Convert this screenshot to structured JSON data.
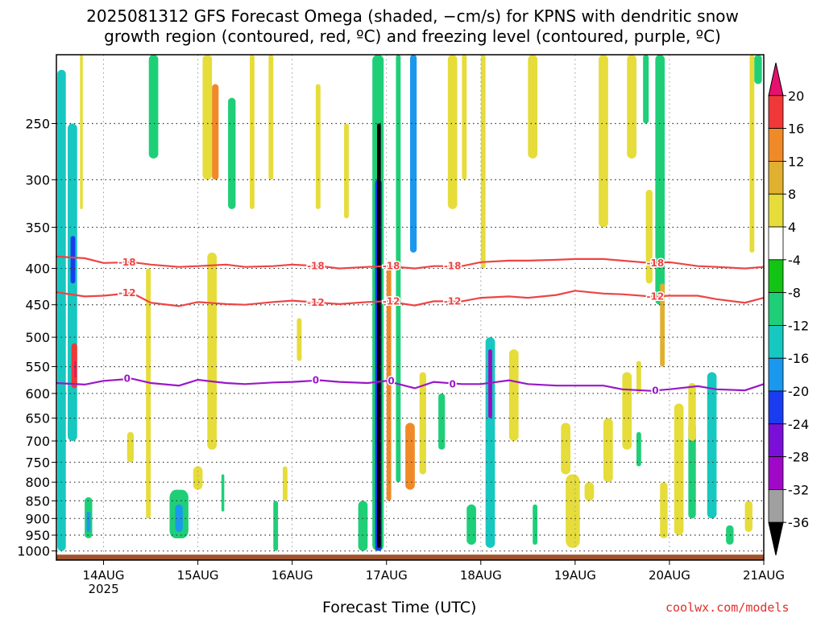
{
  "chart_data": {
    "type": "heatmap",
    "title_line1": "2025081312 GFS Forecast Omega (shaded, −cm/s) for KPNS with dendritic snow",
    "title_line2": "growth region (contoured, red, ºC) and freezing level (contoured, purple, ºC)",
    "xlabel": "Forecast Time (UTC)",
    "credit": "coolwx.com/models",
    "x_ticks": [
      "14AUG",
      "15AUG",
      "16AUG",
      "17AUG",
      "18AUG",
      "19AUG",
      "20AUG",
      "21AUG"
    ],
    "x_year": "2025",
    "x_range_days": [
      13.5,
      21.0
    ],
    "y_scale": "log-pressure",
    "y_range_hpa": [
      1030,
      200
    ],
    "y_ticks": [
      "250",
      "300",
      "350",
      "400",
      "450",
      "500",
      "550",
      "600",
      "650",
      "700",
      "750",
      "800",
      "850",
      "900",
      "950",
      "1000"
    ],
    "colorbar": {
      "labels": [
        "20",
        "16",
        "12",
        "8",
        "4",
        "-4",
        "-8",
        "-12",
        "-16",
        "-20",
        "-24",
        "-28",
        "-32",
        "-36"
      ],
      "colors_top_to_bottom": [
        "#e8106e",
        "#f03838",
        "#f08a28",
        "#e0b030",
        "#e6dc3a",
        "#ffffff",
        "#14c414",
        "#1ecf78",
        "#16c8c0",
        "#1a98ee",
        "#1a3cf0",
        "#7a10d8",
        "#a008c8",
        "#a0a0a0",
        "#000000"
      ]
    },
    "contour_labels": {
      "minus18": "-18",
      "minus12": "-12",
      "zero": "0"
    },
    "series": [
      {
        "name": "-18",
        "color": "#ee4444",
        "x": [
          13.5,
          13.8,
          14.0,
          14.3,
          14.5,
          14.8,
          15.0,
          15.3,
          15.5,
          15.8,
          16.0,
          16.3,
          16.5,
          16.8,
          17.0,
          17.3,
          17.5,
          17.8,
          18.0,
          18.3,
          18.5,
          18.8,
          19.0,
          19.3,
          19.5,
          19.8,
          20.0,
          20.3,
          20.5,
          20.8,
          21.0
        ],
        "y": [
          385,
          387,
          393,
          392,
          395,
          398,
          397,
          395,
          398,
          397,
          395,
          397,
          400,
          398,
          397,
          400,
          397,
          397,
          392,
          390,
          390,
          389,
          388,
          388,
          390,
          393,
          392,
          397,
          398,
          400,
          398
        ]
      },
      {
        "name": "-12",
        "color": "#ee4444",
        "x": [
          13.5,
          13.8,
          14.0,
          14.3,
          14.5,
          14.8,
          15.0,
          15.3,
          15.5,
          15.8,
          16.0,
          16.3,
          16.5,
          16.8,
          17.0,
          17.3,
          17.5,
          17.8,
          18.0,
          18.3,
          18.5,
          18.8,
          19.0,
          19.3,
          19.5,
          19.8,
          20.0,
          20.3,
          20.5,
          20.8,
          21.0
        ],
        "y": [
          432,
          438,
          437,
          433,
          447,
          452,
          446,
          449,
          450,
          446,
          444,
          447,
          449,
          446,
          445,
          451,
          445,
          445,
          440,
          438,
          440,
          436,
          430,
          434,
          435,
          438,
          437,
          437,
          442,
          447,
          440
        ]
      },
      {
        "name": "0",
        "color": "#9a18c8",
        "x": [
          13.5,
          13.8,
          14.0,
          14.3,
          14.5,
          14.8,
          15.0,
          15.3,
          15.5,
          15.8,
          16.0,
          16.3,
          16.5,
          16.8,
          17.0,
          17.3,
          17.5,
          17.8,
          18.0,
          18.3,
          18.5,
          18.8,
          19.0,
          19.3,
          19.5,
          19.8,
          20.0,
          20.3,
          20.5,
          20.8,
          21.0
        ],
        "y": [
          580,
          583,
          576,
          572,
          580,
          585,
          574,
          580,
          582,
          579,
          578,
          575,
          578,
          580,
          576,
          590,
          578,
          582,
          582,
          575,
          582,
          585,
          585,
          585,
          592,
          595,
          592,
          586,
          592,
          594,
          582
        ]
      }
    ],
    "shaded_cells": [
      {
        "x": [
          13.51,
          13.6
        ],
        "p": [
          1000,
          210
        ],
        "v": -12
      },
      {
        "x": [
          13.62,
          13.72
        ],
        "p": [
          700,
          250
        ],
        "v": -14
      },
      {
        "x": [
          13.65,
          13.7
        ],
        "p": [
          420,
          360
        ],
        "v": -20
      },
      {
        "x": [
          13.66,
          13.72
        ],
        "p": [
          590,
          510
        ],
        "v": 18
      },
      {
        "x": [
          13.69,
          13.71
        ],
        "p": [
          570,
          540
        ],
        "v": 21
      },
      {
        "x": [
          13.75,
          13.78
        ],
        "p": [
          330,
          200
        ],
        "v": 6
      },
      {
        "x": [
          13.8,
          13.88
        ],
        "p": [
          960,
          840
        ],
        "v": -10
      },
      {
        "x": [
          13.82,
          13.86
        ],
        "p": [
          940,
          880
        ],
        "v": -16
      },
      {
        "x": [
          14.25,
          14.32
        ],
        "p": [
          750,
          680
        ],
        "v": 5
      },
      {
        "x": [
          14.45,
          14.5
        ],
        "p": [
          900,
          400
        ],
        "v": 5
      },
      {
        "x": [
          14.48,
          14.58
        ],
        "p": [
          280,
          200
        ],
        "v": -8
      },
      {
        "x": [
          14.7,
          14.9
        ],
        "p": [
          960,
          820
        ],
        "v": -10
      },
      {
        "x": [
          14.76,
          14.84
        ],
        "p": [
          940,
          860
        ],
        "v": -18
      },
      {
        "x": [
          14.95,
          15.05
        ],
        "p": [
          820,
          760
        ],
        "v": 5
      },
      {
        "x": [
          15.05,
          15.15
        ],
        "p": [
          300,
          200
        ],
        "v": 5
      },
      {
        "x": [
          15.1,
          15.2
        ],
        "p": [
          720,
          380
        ],
        "v": 5
      },
      {
        "x": [
          15.15,
          15.22
        ],
        "p": [
          300,
          220
        ],
        "v": 12
      },
      {
        "x": [
          15.25,
          15.28
        ],
        "p": [
          880,
          780
        ],
        "v": -8
      },
      {
        "x": [
          15.32,
          15.4
        ],
        "p": [
          330,
          230
        ],
        "v": -8
      },
      {
        "x": [
          15.55,
          15.6
        ],
        "p": [
          330,
          200
        ],
        "v": 5
      },
      {
        "x": [
          15.75,
          15.8
        ],
        "p": [
          300,
          200
        ],
        "v": 5
      },
      {
        "x": [
          15.8,
          15.85
        ],
        "p": [
          1000,
          850
        ],
        "v": -8
      },
      {
        "x": [
          15.9,
          15.95
        ],
        "p": [
          850,
          760
        ],
        "v": 5
      },
      {
        "x": [
          16.05,
          16.1
        ],
        "p": [
          540,
          470
        ],
        "v": 5
      },
      {
        "x": [
          16.25,
          16.3
        ],
        "p": [
          330,
          220
        ],
        "v": 5
      },
      {
        "x": [
          16.55,
          16.6
        ],
        "p": [
          340,
          250
        ],
        "v": 5
      },
      {
        "x": [
          16.7,
          16.8
        ],
        "p": [
          1000,
          850
        ],
        "v": -8
      },
      {
        "x": [
          16.85,
          16.97
        ],
        "p": [
          1000,
          200
        ],
        "v": -10
      },
      {
        "x": [
          16.88,
          16.95
        ],
        "p": [
          1000,
          300
        ],
        "v": -22
      },
      {
        "x": [
          16.9,
          16.94
        ],
        "p": [
          990,
          250
        ],
        "v": -40
      },
      {
        "x": [
          17.0,
          17.05
        ],
        "p": [
          850,
          400
        ],
        "v": 12
      },
      {
        "x": [
          17.1,
          17.15
        ],
        "p": [
          800,
          200
        ],
        "v": -10
      },
      {
        "x": [
          17.2,
          17.3
        ],
        "p": [
          820,
          660
        ],
        "v": 15
      },
      {
        "x": [
          17.25,
          17.32
        ],
        "p": [
          380,
          200
        ],
        "v": -16
      },
      {
        "x": [
          17.35,
          17.42
        ],
        "p": [
          780,
          560
        ],
        "v": 6
      },
      {
        "x": [
          17.55,
          17.62
        ],
        "p": [
          720,
          600
        ],
        "v": -8
      },
      {
        "x": [
          17.65,
          17.75
        ],
        "p": [
          330,
          200
        ],
        "v": 5
      },
      {
        "x": [
          17.8,
          17.85
        ],
        "p": [
          300,
          200
        ],
        "v": 5
      },
      {
        "x": [
          17.85,
          17.95
        ],
        "p": [
          980,
          860
        ],
        "v": -8
      },
      {
        "x": [
          18.0,
          18.05
        ],
        "p": [
          400,
          200
        ],
        "v": 5
      },
      {
        "x": [
          18.05,
          18.15
        ],
        "p": [
          990,
          500
        ],
        "v": -14
      },
      {
        "x": [
          18.08,
          18.12
        ],
        "p": [
          650,
          520
        ],
        "v": -28
      },
      {
        "x": [
          18.3,
          18.4
        ],
        "p": [
          700,
          520
        ],
        "v": 5
      },
      {
        "x": [
          18.5,
          18.6
        ],
        "p": [
          280,
          200
        ],
        "v": 5
      },
      {
        "x": [
          18.55,
          18.6
        ],
        "p": [
          980,
          860
        ],
        "v": -10
      },
      {
        "x": [
          18.85,
          18.95
        ],
        "p": [
          780,
          660
        ],
        "v": 5
      },
      {
        "x": [
          18.9,
          19.05
        ],
        "p": [
          990,
          780
        ],
        "v": 5
      },
      {
        "x": [
          19.1,
          19.2
        ],
        "p": [
          850,
          800
        ],
        "v": 5
      },
      {
        "x": [
          19.25,
          19.35
        ],
        "p": [
          350,
          200
        ],
        "v": 5
      },
      {
        "x": [
          19.3,
          19.4
        ],
        "p": [
          800,
          650
        ],
        "v": 5
      },
      {
        "x": [
          19.5,
          19.6
        ],
        "p": [
          720,
          560
        ],
        "v": 5
      },
      {
        "x": [
          19.55,
          19.65
        ],
        "p": [
          280,
          200
        ],
        "v": 5
      },
      {
        "x": [
          19.65,
          19.7
        ],
        "p": [
          760,
          680
        ],
        "v": -8
      },
      {
        "x": [
          19.65,
          19.7
        ],
        "p": [
          600,
          540
        ],
        "v": 5
      },
      {
        "x": [
          19.72,
          19.78
        ],
        "p": [
          250,
          200
        ],
        "v": -8
      },
      {
        "x": [
          19.75,
          19.82
        ],
        "p": [
          420,
          310
        ],
        "v": 5
      },
      {
        "x": [
          19.85,
          19.95
        ],
        "p": [
          450,
          200
        ],
        "v": -8
      },
      {
        "x": [
          19.9,
          19.98
        ],
        "p": [
          960,
          800
        ],
        "v": 5
      },
      {
        "x": [
          19.9,
          19.95
        ],
        "p": [
          550,
          420
        ],
        "v": 10
      },
      {
        "x": [
          20.05,
          20.15
        ],
        "p": [
          950,
          620
        ],
        "v": 5
      },
      {
        "x": [
          20.2,
          20.28
        ],
        "p": [
          900,
          660
        ],
        "v": -8
      },
      {
        "x": [
          20.2,
          20.28
        ],
        "p": [
          700,
          580
        ],
        "v": 5
      },
      {
        "x": [
          20.4,
          20.5
        ],
        "p": [
          900,
          560
        ],
        "v": -12
      },
      {
        "x": [
          20.6,
          20.68
        ],
        "p": [
          980,
          920
        ],
        "v": -8
      },
      {
        "x": [
          20.8,
          20.88
        ],
        "p": [
          940,
          850
        ],
        "v": 5
      },
      {
        "x": [
          20.85,
          20.9
        ],
        "p": [
          380,
          200
        ],
        "v": 5
      },
      {
        "x": [
          20.9,
          20.98
        ],
        "p": [
          220,
          200
        ],
        "v": -8
      }
    ]
  }
}
